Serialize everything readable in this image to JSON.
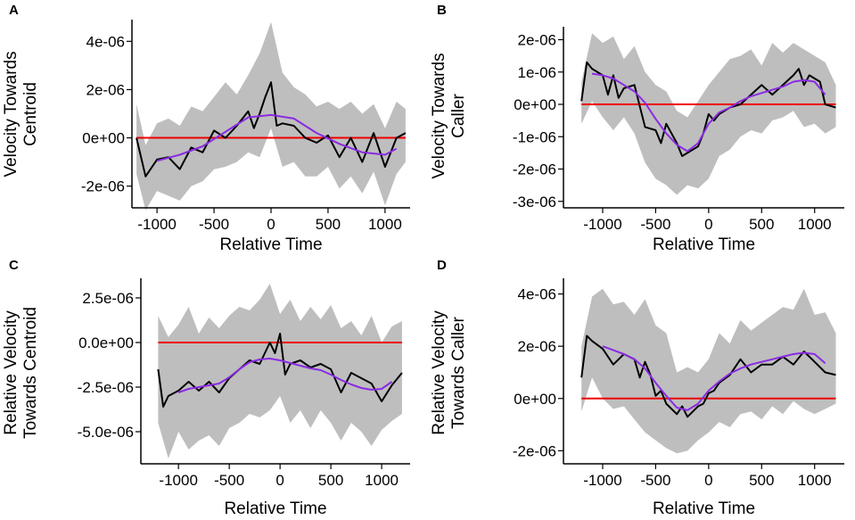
{
  "figure": {
    "background": "#ffffff"
  },
  "colors": {
    "band": "#bebebe",
    "raw": "#000000",
    "smooth": "#8a2be2",
    "zero": "#ee0000"
  },
  "chart_data": [
    {
      "panel": "A",
      "type": "line",
      "xlabel": "Relative Time",
      "ylabel": [
        "Velocity Towards",
        "Centroid"
      ],
      "xlim": [
        -1220,
        1220
      ],
      "ylim": [
        -2.9e-06,
        4.9e-06
      ],
      "xticks": [
        -1000,
        -500,
        0,
        500,
        1000
      ],
      "xtick_labels": [
        "-1000",
        "-500",
        "0",
        "500",
        "1000"
      ],
      "yticks": [
        -2e-06,
        0,
        2e-06,
        4e-06
      ],
      "ytick_labels": [
        "-2e-06",
        "0e+00",
        "2e-06",
        "4e-06"
      ],
      "reference_line": 0,
      "series": [
        {
          "name": "raw",
          "x": [
            -1180,
            -1100,
            -1000,
            -900,
            -800,
            -700,
            -600,
            -500,
            -400,
            -300,
            -200,
            -150,
            -100,
            -50,
            0,
            50,
            100,
            200,
            300,
            400,
            500,
            600,
            700,
            800,
            900,
            1000,
            1100,
            1180
          ],
          "values": [
            0.0,
            -1.6e-06,
            -9e-07,
            -8e-07,
            -1.3e-06,
            -4e-07,
            -6e-07,
            3e-07,
            0.0,
            5e-07,
            1.1e-06,
            4e-07,
            1e-06,
            1.7e-06,
            2.3e-06,
            5e-07,
            6e-07,
            5e-07,
            0.0,
            -2e-07,
            1e-07,
            -8e-07,
            0.0,
            -1e-06,
            2e-07,
            -1.2e-06,
            0.0,
            2e-07
          ]
        },
        {
          "name": "smoothed",
          "x": [
            -1000,
            -800,
            -600,
            -400,
            -200,
            0,
            200,
            400,
            600,
            800,
            1000,
            1100
          ],
          "values": [
            -9.5e-07,
            -7e-07,
            -3.5e-07,
            2.5e-07,
            8.5e-07,
            9.5e-07,
            8e-07,
            2e-07,
            -2.5e-07,
            -6e-07,
            -7e-07,
            -4.5e-07
          ]
        },
        {
          "name": "interval",
          "x": [
            -1180,
            -1100,
            -1000,
            -900,
            -800,
            -700,
            -600,
            -500,
            -400,
            -300,
            -200,
            -100,
            0,
            100,
            200,
            300,
            400,
            500,
            600,
            700,
            800,
            900,
            1000,
            1100,
            1180
          ],
          "low": [
            -1.5e-06,
            -3e-06,
            -2.2e-06,
            -2.4e-06,
            -2.6e-06,
            -2e-06,
            -1.8e-06,
            -1.3e-06,
            -1.2e-06,
            -1e-06,
            -6e-07,
            -8e-07,
            4e-07,
            -1.2e-06,
            -1e-06,
            -1.6e-06,
            -1.6e-06,
            -1.2e-06,
            -2.1e-06,
            -1.6e-06,
            -2.3e-06,
            -1.4e-06,
            -2.8e-06,
            -1.5e-06,
            -1e-06
          ],
          "high": [
            1.4e-06,
            -3e-07,
            6e-07,
            8e-07,
            5e-07,
            1.3e-06,
            1.1e-06,
            1.7e-06,
            2.3e-06,
            1.8e-06,
            2.6e-06,
            3.5e-06,
            4.8e-06,
            2.7e-06,
            2.1e-06,
            1.8e-06,
            1.3e-06,
            1.5e-06,
            1.2e-06,
            1.5e-06,
            1e-06,
            1.4e-06,
            4e-07,
            1.5e-06,
            1.2e-06
          ]
        }
      ]
    },
    {
      "panel": "B",
      "type": "line",
      "xlabel": "Relative Time",
      "ylabel": [
        "Velocity Towards",
        "Caller"
      ],
      "xlim": [
        -1370,
        1280
      ],
      "ylim": [
        -3.2e-06,
        2.4e-06
      ],
      "xticks": [
        -1000,
        -500,
        0,
        500,
        1000
      ],
      "xtick_labels": [
        "-1000",
        "-500",
        "0",
        "500",
        "1000"
      ],
      "yticks": [
        -3e-06,
        -2e-06,
        -1e-06,
        0,
        1e-06,
        2e-06
      ],
      "ytick_labels": [
        "-3e-06",
        "-2e-06",
        "-1e-06",
        "0e+00",
        "1e-06",
        "2e-06"
      ],
      "reference_line": 0,
      "series": [
        {
          "name": "raw",
          "x": [
            -1200,
            -1150,
            -1100,
            -1000,
            -950,
            -900,
            -850,
            -800,
            -700,
            -600,
            -500,
            -450,
            -400,
            -300,
            -250,
            -200,
            -150,
            -100,
            -50,
            0,
            50,
            100,
            200,
            300,
            400,
            500,
            600,
            700,
            800,
            850,
            900,
            950,
            1000,
            1050,
            1100,
            1200
          ],
          "values": [
            1e-07,
            1.3e-06,
            1.1e-06,
            9e-07,
            3e-07,
            9e-07,
            2e-07,
            5e-07,
            6e-07,
            -7e-07,
            -8e-07,
            -1.2e-06,
            -6e-07,
            -1.2e-06,
            -1.6e-06,
            -1.5e-06,
            -1.4e-06,
            -1.3e-06,
            -9e-07,
            -3e-07,
            -5e-07,
            -3e-07,
            -1e-07,
            0.0,
            3e-07,
            6e-07,
            3e-07,
            6e-07,
            9e-07,
            1.1e-06,
            6e-07,
            9e-07,
            8e-07,
            7e-07,
            0.0,
            -1e-07
          ]
        },
        {
          "name": "smoothed",
          "x": [
            -1100,
            -1000,
            -900,
            -800,
            -700,
            -600,
            -500,
            -400,
            -300,
            -200,
            -100,
            0,
            100,
            200,
            300,
            400,
            500,
            600,
            700,
            800,
            900,
            1000,
            1100
          ],
          "values": [
            9.5e-07,
            9e-07,
            8e-07,
            6e-07,
            4e-07,
            5e-08,
            -4.5e-07,
            -9e-07,
            -1.25e-06,
            -1.45e-06,
            -1.2e-06,
            -6e-07,
            -2.5e-07,
            -1e-07,
            1e-07,
            2.5e-07,
            3.5e-07,
            4.5e-07,
            5.5e-07,
            7e-07,
            7.5e-07,
            7e-07,
            3e-07
          ]
        },
        {
          "name": "interval",
          "x": [
            -1200,
            -1100,
            -1000,
            -900,
            -800,
            -700,
            -600,
            -500,
            -400,
            -300,
            -200,
            -100,
            0,
            100,
            200,
            300,
            400,
            500,
            600,
            700,
            800,
            900,
            1000,
            1100,
            1200
          ],
          "low": [
            -6e-07,
            1e-07,
            -4e-07,
            -8e-07,
            -4e-07,
            -9e-07,
            -1.8e-06,
            -2.3e-06,
            -2.5e-06,
            -2.8e-06,
            -2.5e-06,
            -2.6e-06,
            -2.3e-06,
            -1.6e-06,
            -1.4e-06,
            -1e-06,
            -8e-07,
            -9e-07,
            -5e-07,
            -4e-07,
            -2e-07,
            -7e-07,
            -6e-07,
            -9e-07,
            -7e-07
          ],
          "high": [
            7e-07,
            2.2e-06,
            1.9e-06,
            2.1e-06,
            1.4e-06,
            1.8e-06,
            1e-06,
            6e-07,
            4e-07,
            -2e-07,
            -4e-07,
            1e-07,
            6e-07,
            1e-06,
            1.4e-06,
            1.5e-06,
            1.7e-06,
            1.2e-06,
            1.9e-06,
            1.6e-06,
            1.9e-06,
            1.7e-06,
            1.5e-06,
            1.3e-06,
            6e-07
          ]
        }
      ]
    },
    {
      "panel": "C",
      "type": "line",
      "xlabel": "Relative Time",
      "ylabel": [
        "Relative Velocity",
        "Towards Centroid"
      ],
      "xlim": [
        -1370,
        1280
      ],
      "ylim": [
        -6.8e-06,
        3.6e-06
      ],
      "xticks": [
        -1000,
        -500,
        0,
        500,
        1000
      ],
      "xtick_labels": [
        "-1000",
        "-500",
        "0",
        "500",
        "1000"
      ],
      "yticks": [
        -5e-06,
        -2.5e-06,
        0,
        2.5e-06
      ],
      "ytick_labels": [
        "-5.0e-06",
        "-2.5e-06",
        "0.0e+00",
        "2.5e-06"
      ],
      "reference_line": 0,
      "series": [
        {
          "name": "raw",
          "x": [
            -1200,
            -1150,
            -1100,
            -1000,
            -900,
            -800,
            -700,
            -600,
            -500,
            -400,
            -300,
            -200,
            -100,
            -50,
            0,
            50,
            100,
            200,
            300,
            400,
            500,
            600,
            700,
            800,
            900,
            1000,
            1100,
            1200
          ],
          "values": [
            -1.5e-06,
            -3.6e-06,
            -3e-06,
            -2.7e-06,
            -2.2e-06,
            -2.7e-06,
            -2.2e-06,
            -2.8e-06,
            -2e-06,
            -1.5e-06,
            -1e-06,
            -1.2e-06,
            0.0,
            -6e-07,
            5e-07,
            -1.8e-06,
            -1.2e-06,
            -1e-06,
            -1.4e-06,
            -1.2e-06,
            -1.5e-06,
            -2.8e-06,
            -1.7e-06,
            -2e-06,
            -2.3e-06,
            -3.3e-06,
            -2.4e-06,
            -1.7e-06
          ]
        },
        {
          "name": "smoothed",
          "x": [
            -1000,
            -900,
            -800,
            -700,
            -600,
            -500,
            -400,
            -300,
            -200,
            -100,
            0,
            100,
            200,
            300,
            400,
            500,
            600,
            700,
            800,
            900,
            1000,
            1100
          ],
          "values": [
            -2.8e-06,
            -2.6e-06,
            -2.5e-06,
            -2.4e-06,
            -2.3e-06,
            -1.95e-06,
            -1.5e-06,
            -1.1e-06,
            -9.5e-07,
            -9e-07,
            -1e-06,
            -1.15e-06,
            -1.3e-06,
            -1.45e-06,
            -1.55e-06,
            -1.8e-06,
            -2.1e-06,
            -2.35e-06,
            -2.55e-06,
            -2.65e-06,
            -2.6e-06,
            -2.2e-06
          ]
        },
        {
          "name": "interval",
          "x": [
            -1200,
            -1100,
            -1000,
            -900,
            -800,
            -700,
            -600,
            -500,
            -400,
            -300,
            -200,
            -100,
            0,
            100,
            200,
            300,
            400,
            500,
            600,
            700,
            800,
            900,
            1000,
            1100,
            1200
          ],
          "low": [
            -4.5e-06,
            -6.5e-06,
            -5e-06,
            -6e-06,
            -5.5e-06,
            -5.2e-06,
            -5.8e-06,
            -4.8e-06,
            -4.5e-06,
            -4e-06,
            -4.2e-06,
            -3.8e-06,
            -3e-06,
            -4.5e-06,
            -3.8e-06,
            -4.8e-06,
            -3.8e-06,
            -4.5e-06,
            -5.5e-06,
            -4.5e-06,
            -5e-06,
            -5.8e-06,
            -4.9e-06,
            -4.4e-06,
            -4e-06
          ],
          "high": [
            1.5e-06,
            3e-07,
            1e-06,
            2e-06,
            5e-07,
            1.4e-06,
            8e-07,
            1.5e-06,
            2e-06,
            1.8e-06,
            2.4e-06,
            3.3e-06,
            1.6e-06,
            2.4e-06,
            1.2e-06,
            2e-06,
            1.3e-06,
            2.1e-06,
            8e-07,
            1.2e-06,
            4e-07,
            1.5e-06,
            0.0,
            9e-07,
            1.2e-06
          ]
        }
      ]
    },
    {
      "panel": "D",
      "type": "line",
      "xlabel": "Relative Time",
      "ylabel": [
        "Relative Velocity",
        "Towards Caller"
      ],
      "xlim": [
        -1370,
        1280
      ],
      "ylim": [
        -2.5e-06,
        4.6e-06
      ],
      "xticks": [
        -1000,
        -500,
        0,
        500,
        1000
      ],
      "xtick_labels": [
        "-1000",
        "-500",
        "0",
        "500",
        "1000"
      ],
      "yticks": [
        -2e-06,
        0,
        2e-06,
        4e-06
      ],
      "ytick_labels": [
        "-2e-06",
        "0e+00",
        "2e-06",
        "4e-06"
      ],
      "reference_line": 0,
      "series": [
        {
          "name": "raw",
          "x": [
            -1200,
            -1150,
            -1100,
            -1000,
            -900,
            -800,
            -700,
            -650,
            -600,
            -550,
            -500,
            -450,
            -400,
            -300,
            -250,
            -200,
            -100,
            -50,
            0,
            50,
            100,
            200,
            300,
            400,
            500,
            600,
            700,
            800,
            900,
            1000,
            1100,
            1200
          ],
          "values": [
            8e-07,
            2.4e-06,
            2.2e-06,
            1.9e-06,
            1.3e-06,
            1.7e-06,
            1.5e-06,
            8e-07,
            1.4e-06,
            9e-07,
            1e-07,
            3e-07,
            -2e-07,
            -6e-07,
            -3e-07,
            -7e-07,
            -3e-07,
            -2e-07,
            2e-07,
            3e-07,
            6e-07,
            9e-07,
            1.5e-06,
            1e-06,
            1.3e-06,
            1.3e-06,
            1.6e-06,
            1.3e-06,
            1.8e-06,
            1.4e-06,
            1e-06,
            9e-07
          ]
        },
        {
          "name": "smoothed",
          "x": [
            -1000,
            -900,
            -800,
            -700,
            -600,
            -500,
            -400,
            -300,
            -200,
            -100,
            0,
            100,
            200,
            300,
            400,
            500,
            600,
            700,
            800,
            900,
            1000,
            1100
          ],
          "values": [
            2e-06,
            1.85e-06,
            1.7e-06,
            1.5e-06,
            1.15e-06,
            6e-07,
            1e-07,
            -3.5e-07,
            -4.5e-07,
            -2e-07,
            3e-07,
            6.5e-07,
            9.5e-07,
            1.15e-06,
            1.3e-06,
            1.4e-06,
            1.5e-06,
            1.6e-06,
            1.7e-06,
            1.75e-06,
            1.7e-06,
            1.35e-06
          ]
        },
        {
          "name": "interval",
          "x": [
            -1200,
            -1100,
            -1000,
            -900,
            -800,
            -700,
            -600,
            -500,
            -400,
            -300,
            -200,
            -100,
            0,
            100,
            200,
            300,
            400,
            500,
            600,
            700,
            800,
            900,
            1000,
            1100,
            1200
          ],
          "low": [
            -5e-07,
            8e-07,
            0.0,
            -4e-07,
            -3e-07,
            -8e-07,
            -1.3e-06,
            -1.6e-06,
            -1.9e-06,
            -2.1e-06,
            -2e-06,
            -1.6e-06,
            -1.3e-06,
            -9e-07,
            -1.1e-06,
            -6e-07,
            -5e-07,
            -8e-07,
            -3e-07,
            -6e-07,
            -1e-07,
            -4e-07,
            -6e-07,
            -4e-07,
            -2e-07
          ],
          "high": [
            2e-06,
            3.9e-06,
            4.2e-06,
            3.6e-06,
            3.7e-06,
            3.2e-06,
            3.8e-06,
            2.8e-06,
            2.5e-06,
            1e-06,
            1.2e-06,
            1e-06,
            1.5e-06,
            2.5e-06,
            2.1e-06,
            3e-06,
            2.6e-06,
            2.9e-06,
            3.2e-06,
            3.5e-06,
            3.4e-06,
            4.2e-06,
            3.2e-06,
            3.3e-06,
            2.5e-06
          ]
        }
      ]
    }
  ]
}
